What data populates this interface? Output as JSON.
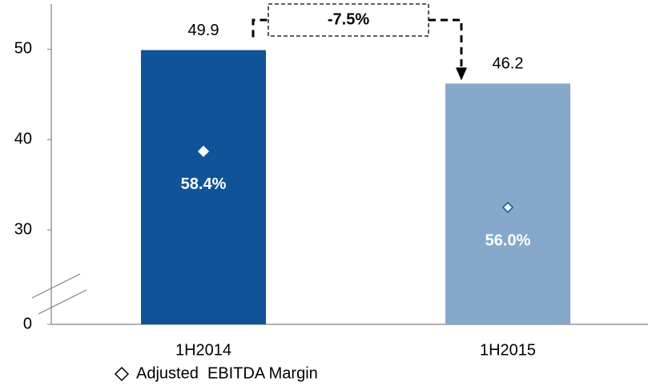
{
  "chart_data": {
    "type": "bar",
    "categories": [
      "1H2014",
      "1H2015"
    ],
    "series": [
      {
        "name": "Adjusted EBITDA",
        "colors": [
          "#0f5499",
          "#85a8cb"
        ],
        "values": [
          49.9,
          46.2
        ]
      },
      {
        "name": "Adjusted  EBITDA Margin",
        "type": "scatter",
        "axis": "y2",
        "marker": "diamond",
        "color": "#0f5499",
        "values": [
          58.4,
          56.0
        ],
        "value_labels": [
          "58.4%",
          "56.0%"
        ]
      }
    ],
    "ylim": [
      0,
      55
    ],
    "yticks": [
      0,
      30,
      40,
      50
    ],
    "axis_break": [
      0,
      27
    ],
    "y2lim": [
      51,
      64.7
    ],
    "annotation": "-7.5%",
    "legend": "bottom-left"
  }
}
